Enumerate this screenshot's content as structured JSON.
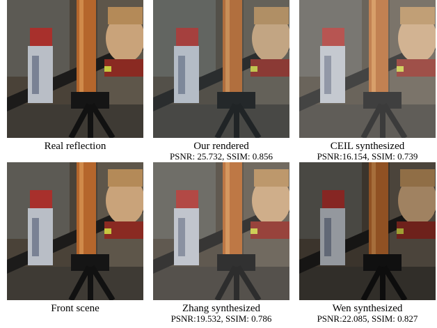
{
  "panels": [
    {
      "caption": "Real reflection"
    },
    {
      "caption": "Our rendered",
      "metrics": "PSNR: 25.732, SSIM: 0.856"
    },
    {
      "caption": "CEIL synthesized",
      "metrics": "PSNR:16.154, SSIM: 0.739"
    },
    {
      "caption": "Front scene"
    },
    {
      "caption": "Zhang synthesized",
      "metrics": "PSNR:19.532, SSIM: 0.786"
    },
    {
      "caption": "Wen synthesized",
      "metrics": "PSNR:22.085, SSIM: 0.827"
    }
  ]
}
